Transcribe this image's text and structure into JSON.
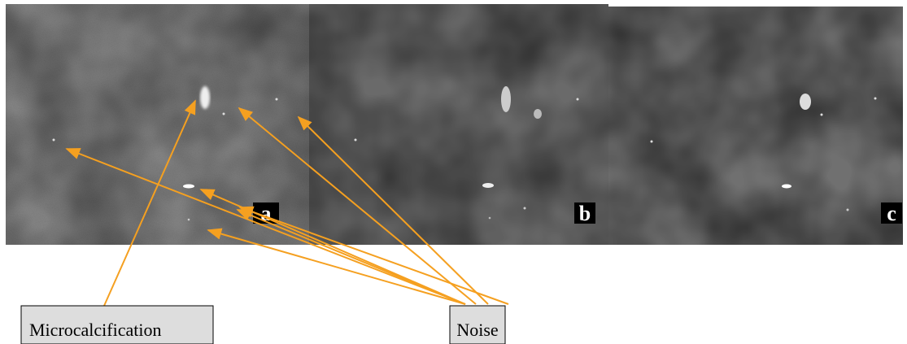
{
  "panels": [
    {
      "label": "a"
    },
    {
      "label": "b"
    },
    {
      "label": "c"
    }
  ],
  "callouts": [
    {
      "text": "Microcalcification"
    },
    {
      "text": "Noise"
    }
  ]
}
